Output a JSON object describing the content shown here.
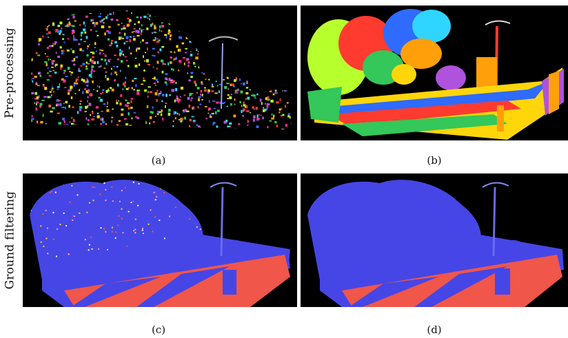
{
  "rows": {
    "top": {
      "label": "Pre-processing"
    },
    "bottom": {
      "label": "Ground filtering"
    }
  },
  "panels": {
    "a": {
      "caption": "(a)"
    },
    "b": {
      "caption": "(b)"
    },
    "c": {
      "caption": "(c)"
    },
    "d": {
      "caption": "(d)"
    }
  },
  "colors": {
    "background": "#000000",
    "ground_red": "#f0564a",
    "object_blue": "#4646e6",
    "palette": [
      "#ff3b30",
      "#34c759",
      "#2f6bff",
      "#ffd60a",
      "#af52de",
      "#30d5ff",
      "#ff9f0a",
      "#b8ff2e",
      "#ff2d95"
    ]
  }
}
